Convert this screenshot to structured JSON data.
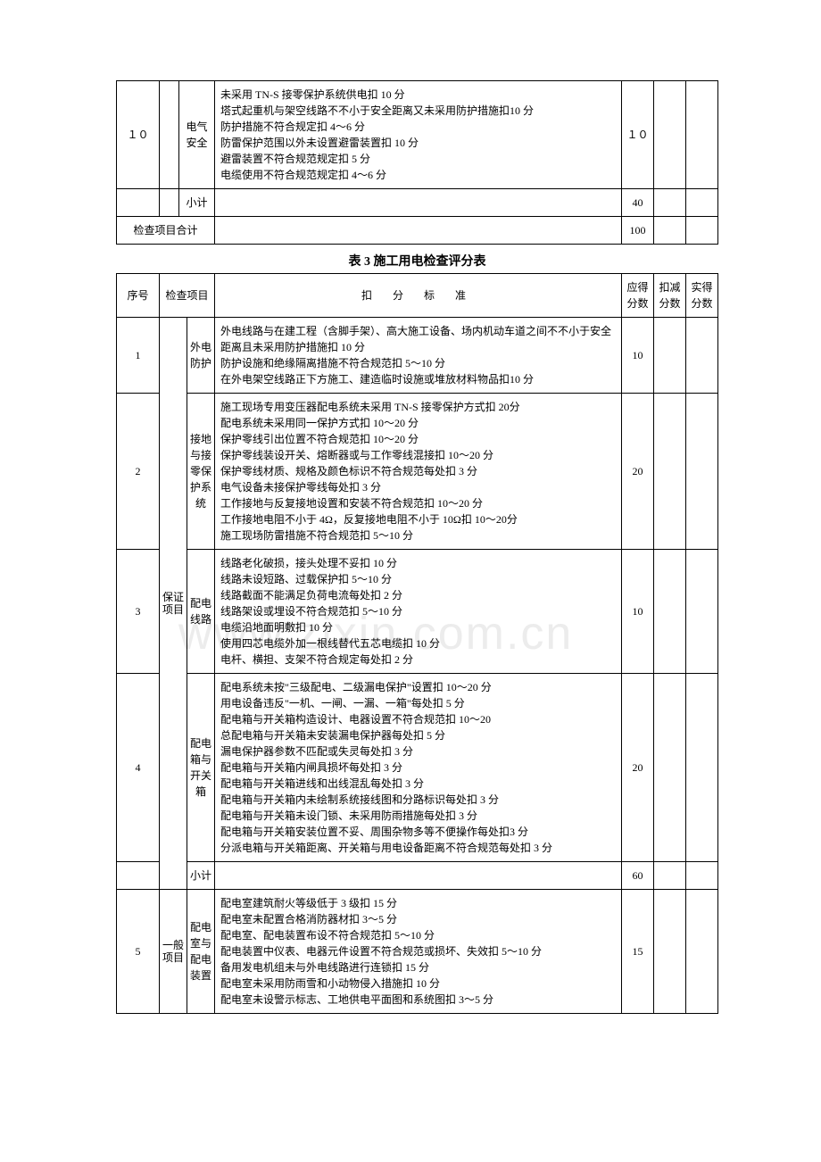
{
  "watermark": "www.zixin.com.cn",
  "table1": {
    "rows": [
      {
        "num": "１０",
        "cat": "",
        "item": "电气安全",
        "crit": "未采用 TN-S 接零保护系统供电扣 10 分\n塔式起重机与架空线路不不小于安全距离又未采用防护措施扣10 分\n防护措施不符合规定扣 4～6 分\n防雷保护范围以外未设置避雷装置扣 10 分\n避雷装置不符合规范规定扣 5 分\n电缆使用不符合规范规定扣 4～6 分",
        "p1": "１０",
        "p2": "",
        "p3": ""
      },
      {
        "num": "",
        "cat": "",
        "item": "小计",
        "crit": "",
        "p1": "40",
        "p2": "",
        "p3": ""
      }
    ],
    "total": {
      "label": "检查项目合计",
      "p1": "100",
      "p2": "",
      "p3": ""
    }
  },
  "table2": {
    "title": "表 3 施工用电检查评分表",
    "headers": {
      "num": "序号",
      "cat": "检查项目",
      "crit": "扣  分  标  准",
      "p1": "应得分数",
      "p2": "扣减分数",
      "p3": "实得分数"
    },
    "cat_a": "保证项目",
    "cat_b": "一般项目",
    "rows_a": [
      {
        "num": "1",
        "item": "外电防护",
        "crit": "外电线路与在建工程（含脚手架）、高大施工设备、场内机动车道之间不不小于安全距离且未采用防护措施扣 10 分\n防护设施和绝缘隔离措施不符合规范扣 5～10 分\n在外电架空线路正下方施工、建造临时设施或堆放材料物品扣10 分",
        "p1": "10",
        "p2": "",
        "p3": ""
      },
      {
        "num": "2",
        "item": "接地与接零保护系统",
        "crit": "施工现场专用变压器配电系统未采用 TN-S 接零保护方式扣 20分\n配电系统未采用同一保护方式扣 10～20 分\n保护零线引出位置不符合规范扣 10～20 分\n保护零线装设开关、熔断器或与工作零线混接扣 10～20 分\n保护零线材质、规格及颜色标识不符合规范每处扣 3 分\n电气设备未接保护零线每处扣 3 分\n工作接地与反复接地设置和安装不符合规范扣 10～20 分\n工作接地电阻不小于 4Ω，反复接地电阻不小于 10Ω扣 10～20分\n施工现场防雷措施不符合规范扣 5～10 分",
        "p1": "20",
        "p2": "",
        "p3": ""
      },
      {
        "num": "3",
        "item": "配电线路",
        "crit": "线路老化破损，接头处理不妥扣 10 分\n线路未设短路、过载保护扣 5～10 分\n线路截面不能满足负荷电流每处扣 2 分\n线路架设或埋设不符合规范扣 5～10 分\n电缆沿地面明敷扣 10 分\n使用四芯电缆外加一根线替代五芯电缆扣 10 分\n电杆、横担、支架不符合规定每处扣 2 分",
        "p1": "10",
        "p2": "",
        "p3": ""
      },
      {
        "num": "4",
        "item": "配电箱与开关箱",
        "crit": "配电系统未按\"三级配电、二级漏电保护\"设置扣 10～20 分\n用电设备违反\"一机、一闸、一漏、一箱\"每处扣 5 分\n配电箱与开关箱构造设计、电器设置不符合规范扣 10～20\n总配电箱与开关箱未安装漏电保护器每处扣 5 分\n漏电保护器参数不匹配或失灵每处扣 3 分\n配电箱与开关箱内闸具损坏每处扣 3 分\n配电箱与开关箱进线和出线混乱每处扣 3 分\n配电箱与开关箱内未绘制系统接线图和分路标识每处扣 3 分\n配电箱与开关箱未设门锁、未采用防雨措施每处扣 3 分\n配电箱与开关箱安装位置不妥、周围杂物多等不便操作每处扣3 分\n分派电箱与开关箱距离、开关箱与用电设备距离不符合规范每处扣 3 分",
        "p1": "20",
        "p2": "",
        "p3": ""
      }
    ],
    "subtotal_a": {
      "item": "小计",
      "p1": "60",
      "p2": "",
      "p3": ""
    },
    "rows_b": [
      {
        "num": "5",
        "item": "配电室与配电装置",
        "crit": "配电室建筑耐火等级低于 3 级扣 15 分\n配电室未配置合格消防器材扣 3～5 分\n配电室、配电装置布设不符合规范扣 5～10 分\n配电装置中仪表、电器元件设置不符合规范或损坏、失效扣 5～10 分\n备用发电机组未与外电线路进行连锁扣 15 分\n配电室未采用防雨雪和小动物侵入措施扣 10 分\n配电室未设警示标志、工地供电平面图和系统图扣 3～5 分",
        "p1": "15",
        "p2": "",
        "p3": ""
      }
    ]
  },
  "style": {
    "border_color": "#000000",
    "background_color": "#ffffff",
    "text_color": "#000000",
    "font_family": "SimSun",
    "base_fontsize": 12,
    "title_fontsize": 14,
    "watermark_color": "rgba(200,200,200,0.35)",
    "col_widths": {
      "num": 48,
      "cat": 22,
      "item": 40,
      "p1": 36,
      "p2": 36,
      "p3": 36
    }
  }
}
